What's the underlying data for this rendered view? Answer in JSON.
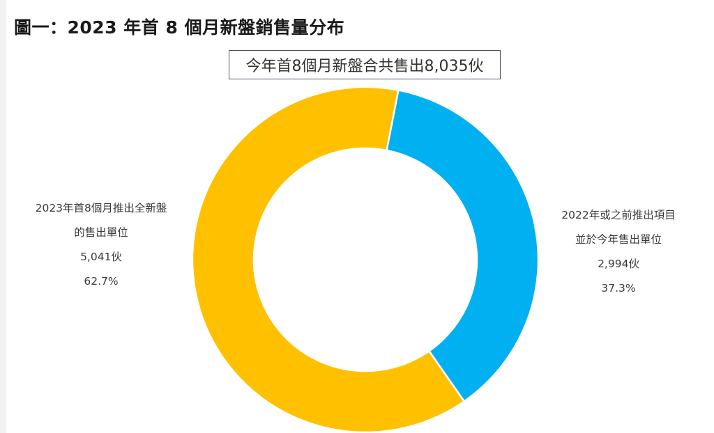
{
  "figure": {
    "title": "圖一：2023 年首 8 個月新盤銷售量分布",
    "total_box": "今年首8個月新盤合共售出8,035伙"
  },
  "chart_data": {
    "type": "pie",
    "donut": true,
    "total": 8035,
    "series": [
      {
        "category": "2022年或之前推出項目並於今年售出單位",
        "label_lines": [
          "2022年或之前推出項目",
          "並於今年售出單位",
          "2,994伙",
          "37.3%"
        ],
        "value": 2994,
        "percent": 37.3,
        "color": "#00b0f0"
      },
      {
        "category": "2023年首8個月推出全新盤的售出單位",
        "label_lines": [
          "2023年首8個月推出全新盤",
          "的售出單位",
          "5,041伙",
          "62.7%"
        ],
        "value": 5041,
        "percent": 62.7,
        "color": "#ffc000"
      }
    ]
  }
}
